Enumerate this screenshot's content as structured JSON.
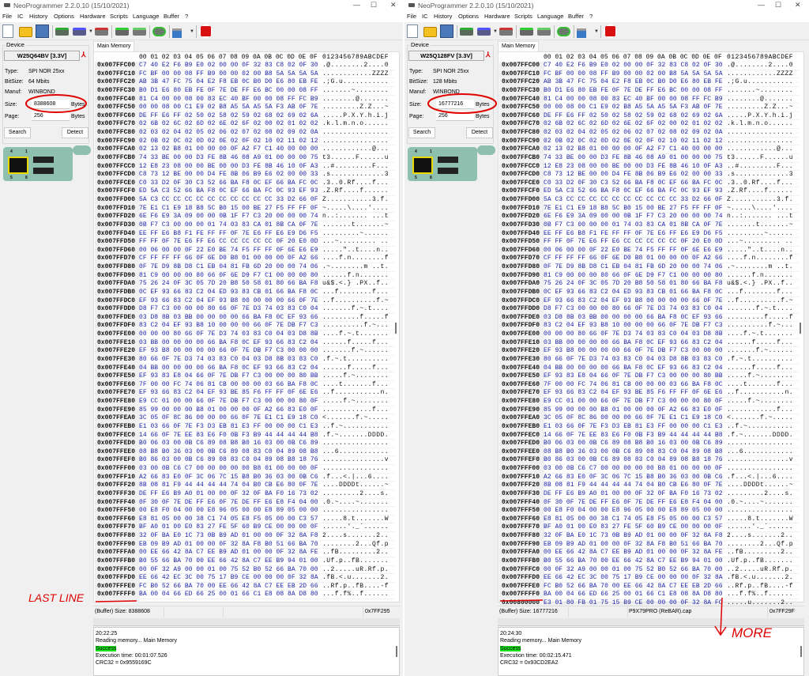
{
  "colors": {
    "hex_text": "#1b22a8",
    "success_bg": "#1be21b",
    "annotation": "#e00000"
  },
  "menu": [
    "File",
    "IC",
    "History",
    "Options",
    "Hardware",
    "Scripts",
    "Language",
    "Buffer",
    "?"
  ],
  "toolbar_icons": [
    "new-file-icon",
    "open-folder-icon",
    "save-icon",
    "read-chip-icon",
    "write-chip-icon",
    "erase-chip-icon",
    "verify-chip-icon",
    "blank-check-icon",
    "auto-program-icon",
    "lock-icon",
    "stop-icon"
  ],
  "labels": {
    "device": "Device",
    "type": "Type:",
    "bitsize": "BitSize:",
    "manuf": "Manuf:",
    "size": "Size:",
    "page": "Page:",
    "bytes": "Bytes",
    "search": "Search",
    "detect": "Detect",
    "tab": "Main Memory",
    "hex_header": "00 01 02 03 04 05 06 07 08 09 0A 0B 0C 0D 0E 0F",
    "ascii_header": "0123456789ABCDEF",
    "minimize": "—",
    "maximize": "☐",
    "close": "✕",
    "pin4": "4",
    "pin1": "1",
    "pin5": "5",
    "pin8": "8"
  },
  "windows": [
    {
      "title": "NeoProgrammer 2.2.0.10 (15/10/2021)",
      "chip": "W25Q64BV [3.3V]",
      "type": "SPI NOR 25xx",
      "bitsize": "64 Mbits",
      "manuf": "WINBOND",
      "size": "8388608",
      "page": "256",
      "status": {
        "buffer": "(Buffer) Size: 8388608",
        "file": "",
        "offset": "0x7FF295"
      },
      "log": {
        "time": "20:22:25",
        "action": "Reading memory... Main Memory",
        "result": "Success",
        "exec": "Execution time: 00:01:07.526",
        "crc": "CRC32 = 0x9559169C"
      },
      "annotation": "LAST LINE"
    },
    {
      "title": "NeoProgrammer 2.2.0.10 (15/10/2021)",
      "chip": "W25Q128FV [3.3V]",
      "type": "SPI NOR 25xx",
      "bitsize": "128 Mbits",
      "manuf": "WINBOND",
      "size": "16777216",
      "page": "256",
      "status": {
        "buffer": "(Buffer) Size: 16777216",
        "file": "P9X79PRO (ReBAR).cap",
        "offset": "0x7FF29F"
      },
      "log": {
        "time": "20:24:30",
        "action": "Reading memory... Main Memory",
        "result": "Success",
        "exec": "Execution time: 00:02:15.471",
        "crc": "CRC32 = 0x93CD2EA2"
      },
      "annotation": "MORE",
      "extra_rows": [
        {
          "addr": "0x00800000",
          "bytes": "E3 01 80 FB 01 75 15 B9 CE 00 00 00 0F 32 8A FC",
          "ascii": ".....u.......2.."
        }
      ]
    }
  ],
  "memory_rows": [
    {
      "addr": "0x007FFC00",
      "bytes": "C7 40 E2 F6 B9 E0 02 00 00 0F 32 83 C8 02 0F 30",
      "ascii": ".@........2....0"
    },
    {
      "addr": "0x007FFC10",
      "bytes": "FC BF 00 00 08 FF B9 00 00 02 00 B8 5A 5A 5A 5A",
      "ascii": "............ZZZZ"
    },
    {
      "addr": "0x007FFC20",
      "bytes": "AB 3B 47 FC 75 04 E2 F8 EB 0C B0 D0 E6 80 EB FE",
      "ascii": ".;G.u..........."
    },
    {
      "addr": "0x007FFC30",
      "bytes": "B0 D1 E6 80 EB FE 0F 7E DE FF E6 BC 00 00 08 FF",
      "ascii": ".......~........"
    },
    {
      "addr": "0x007FFC40",
      "bytes": "81 C4 00 00 08 00 83 EC 40 BF 00 00 08 FF FC B9",
      "ascii": "........@......."
    },
    {
      "addr": "0x007FFC50",
      "bytes": "00 00 08 00 C1 E9 02 B8 A5 5A A5 5A F3 AB 0F 7E",
      "ascii": ".........Z.Z...~"
    },
    {
      "addr": "0x007FFC60",
      "bytes": "DE FF E6 FF 02 50 02 58 02 59 02 68 02 69 02 6A",
      "ascii": ".....P.X.Y.h.i.j"
    },
    {
      "addr": "0x007FFC70",
      "bytes": "02 6B 02 6C 02 6D 02 6E 02 6F 02 00 02 01 02 02",
      "ascii": ".k.l.m.n.o......"
    },
    {
      "addr": "0x007FFC80",
      "bytes": "02 03 02 04 02 05 02 06 02 07 02 08 02 09 02 0A",
      "ascii": "................"
    },
    {
      "addr": "0x007FFC90",
      "bytes": "02 0B 02 0C 02 0D 02 0E 02 0F 02 10 02 11 02 12",
      "ascii": "................"
    },
    {
      "addr": "0x007FFCA0",
      "bytes": "02 13 02 B8 01 00 00 00 0F A2 F7 C1 40 00 00 00",
      "ascii": "............@..."
    },
    {
      "addr": "0x007FFCB0",
      "bytes": "74 33 BE 00 00 D3 FE 8B 46 08 A9 01 00 00 00 75",
      "ascii": "t3......F......u"
    },
    {
      "addr": "0x007FFCC0",
      "bytes": "12 E8 23 08 00 00 BE 00 00 D3 FE 8B 46 10 0F A3",
      "ascii": "..#.........F..."
    },
    {
      "addr": "0x007FFCD0",
      "bytes": "C8 73 12 BE 00 00 D4 FE 8B 06 B9 E6 02 00 00 33",
      "ascii": ".s.............3"
    },
    {
      "addr": "0x007FFCE0",
      "bytes": "C0 33 D2 0F 30 C3 52 66 BA F8 0C EF 66 BA FC 0C",
      "ascii": ".3..0.Rf....f..."
    },
    {
      "addr": "0x007FFCF0",
      "bytes": "ED 5A C3 52 66 BA F8 0C EF 66 BA FC 0C 93 EF 93",
      "ascii": ".Z.Rf....f......"
    },
    {
      "addr": "0x007FFD00",
      "bytes": "5A C3 CC CC CC CC CC CC CC CC CC CC 33 D2 66 0F",
      "ascii": "Z...........3.f."
    },
    {
      "addr": "0x007FFD10",
      "bytes": "7E E1 C1 E9 18 B8 5C B0 15 00 BE 27 F5 FF FF 0F",
      "ascii": "~.....\\....'...."
    },
    {
      "addr": "0x007FFD20",
      "bytes": "6E F6 E9 3A 09 00 00 0B 1F F7 C3 20 00 00 00 74",
      "ascii": "n..:....... ...t"
    },
    {
      "addr": "0x007FFD30",
      "bytes": "0B F7 C3 00 00 00 01 74 03 83 CA 01 8B CA 0F 7E",
      "ascii": ".......t.......~"
    },
    {
      "addr": "0x007FFD40",
      "bytes": "EE FF E6 B8 F1 FE FF FF 0F 7E E6 FF E6 E9 D6 F5",
      "ascii": ".........~......"
    },
    {
      "addr": "0x007FFD50",
      "bytes": "FF FF 0F 7E E6 FF E6 CC CC CC CC CC 0F 20 E0 0D",
      "ascii": "...~......... .."
    },
    {
      "addr": "0x007FFD60",
      "bytes": "00 06 00 00 0F 22 E0 BE 74 F5 FF FF 0F 6E E6 E9",
      "ascii": ".....\"..t....n.."
    },
    {
      "addr": "0x007FFD70",
      "bytes": "CF FF FF FF 66 0F 6E D0 B8 01 00 00 00 0F A2 66",
      "ascii": "....f.n........f"
    },
    {
      "addr": "0x007FFD80",
      "bytes": "0F 7E D9 8B D8 C1 EB 04 81 FB 6D 20 00 00 74 06",
      "ascii": ".~........m ..t."
    },
    {
      "addr": "0x007FFD90",
      "bytes": "81 C9 00 00 00 80 66 0F 6E D9 F7 C1 00 00 00 80",
      "ascii": "......f.n......."
    },
    {
      "addr": "0x007FFDA0",
      "bytes": "75 26 24 0F 3C 05 7D 20 B8 50 58 01 80 66 BA F8",
      "ascii": "u&$.<.} .PX..f.."
    },
    {
      "addr": "0x007FFDB0",
      "bytes": "0C EF 93 66 83 C2 04 ED 93 83 CB 01 66 BA F8 0C",
      "ascii": "...f........f..."
    },
    {
      "addr": "0x007FFDC0",
      "bytes": "EF 93 66 83 C2 04 EF 93 B8 00 00 00 00 66 0F 7E",
      "ascii": "..f..........f.~"
    },
    {
      "addr": "0x007FFDD0",
      "bytes": "D8 F7 C3 00 00 00 80 66 0F 7E D3 74 03 83 C0 04",
      "ascii": ".......f.~.t...."
    },
    {
      "addr": "0x007FFDE0",
      "bytes": "03 D8 8B 03 BB 00 00 00 00 66 BA F8 0C EF 93 66",
      "ascii": ".........f.....f"
    },
    {
      "addr": "0x007FFDF0",
      "bytes": "83 C2 04 EF 93 B8 10 00 00 00 66 0F 7E DB F7 C3",
      "ascii": "..........f.~..."
    },
    {
      "addr": "0x007FFE00",
      "bytes": "00 00 00 80 66 0F 7E D3 74 03 83 C0 04 03 D8 8B",
      "ascii": "....f.~.t......."
    },
    {
      "addr": "0x007FFE10",
      "bytes": "03 BB 00 00 00 00 66 BA F8 0C EF 93 66 83 C2 04",
      "ascii": "......f.....f..."
    },
    {
      "addr": "0x007FFE20",
      "bytes": "EF 93 B8 00 00 00 00 66 0F 7E DB F7 C3 00 00 00",
      "ascii": ".......f.~......"
    },
    {
      "addr": "0x007FFE30",
      "bytes": "80 66 0F 7E D3 74 03 83 C0 04 03 D8 8B 03 83 C0",
      "ascii": ".f.~.t.........."
    },
    {
      "addr": "0x007FFE40",
      "bytes": "04 BB 00 00 00 00 66 BA F8 0C EF 93 66 83 C2 04",
      "ascii": "......f.....f..."
    },
    {
      "addr": "0x007FFE50",
      "bytes": "EF 93 83 E8 04 66 0F 7E DB F7 C3 00 00 00 80 BB",
      "ascii": ".....f.~........"
    },
    {
      "addr": "0x007FFE60",
      "bytes": "7F 00 00 FC 74 06 81 CB 00 00 00 03 66 BA F8 0C",
      "ascii": "....t.......f..."
    },
    {
      "addr": "0x007FFE70",
      "bytes": "EF 93 66 83 C2 04 EF 93 BE 85 F6 FF FF 0F 6E E6",
      "ascii": "..f...........n."
    },
    {
      "addr": "0x007FFE80",
      "bytes": "E9 CC 01 00 00 66 0F 7E DB F7 C3 00 00 00 80 0F",
      "ascii": ".....f.~........"
    },
    {
      "addr": "0x007FFE90",
      "bytes": "85 99 00 00 00 B8 01 00 00 00 0F A2 66 83 E0 0F",
      "ascii": "............f..."
    },
    {
      "addr": "0x007FFEA0",
      "bytes": "3C 05 0F 8C 86 00 00 00 66 0F 7E E1 C1 E9 18 C0",
      "ascii": "<.......f.~....."
    },
    {
      "addr": "0x007FFEB0",
      "bytes": "E1 03 66 0F 7E F3 D3 EB 81 E3 FF 00 00 00 C1 E3",
      "ascii": "..f.~..........."
    },
    {
      "addr": "0x007FFEC0",
      "bytes": "14 66 0F 7E EE 83 E6 F0 0B F3 B9 44 44 44 44 B8",
      "ascii": ".f.~.......DDDD."
    },
    {
      "addr": "0x007FFED0",
      "bytes": "B0 06 03 00 0B C6 89 08 B8 B0 16 03 00 0B C6 89",
      "ascii": "................"
    },
    {
      "addr": "0x007FFEE0",
      "bytes": "08 B8 B0 36 03 00 0B C6 89 08 83 C0 04 89 08 B8",
      "ascii": "...6............"
    },
    {
      "addr": "0x007FFEF0",
      "bytes": "B0 86 03 00 0B C6 89 08 83 C0 04 89 08 B8 18 76",
      "ascii": "...............v"
    },
    {
      "addr": "0x007FFF00",
      "bytes": "03 00 0B C6 C7 00 00 00 00 00 B8 01 00 00 00 0F",
      "ascii": "................"
    },
    {
      "addr": "0x007FFF10",
      "bytes": "A2 66 83 E0 0F 3C 06 7C 15 B8 B0 36 03 00 0B C6",
      "ascii": ".f...<.|...6...."
    },
    {
      "addr": "0x007FFF20",
      "bytes": "8B 08 81 F9 44 44 44 44 74 04 B0 CB E6 80 0F 7E",
      "ascii": "....DDDDt......~"
    },
    {
      "addr": "0x007FFF30",
      "bytes": "DE FF E6 B9 A0 01 00 00 0F 32 0F BA F0 16 73 02",
      "ascii": ".........2....s."
    },
    {
      "addr": "0x007FFF40",
      "bytes": "0F 30 0F 7E DE FF E6 0F 7E DE FF E6 E8 F4 04 00",
      "ascii": ".0.~....~......."
    },
    {
      "addr": "0x007FFF50",
      "bytes": "00 E8 F0 04 00 00 E8 96 05 00 00 E8 89 05 00 00",
      "ascii": "................"
    },
    {
      "addr": "0x007FFF60",
      "bytes": "E8 81 05 00 00 38 C1 74 05 E8 F5 05 00 00 C3 57",
      "ascii": ".....8.t.......W"
    },
    {
      "addr": "0x007FFF70",
      "bytes": "BF A0 01 00 E0 83 27 FE 5F 60 B9 CE 00 00 00 0F",
      "ascii": "......'._`......"
    },
    {
      "addr": "0x007FFF80",
      "bytes": "32 0F BA E0 1C 73 0B B9 AD 01 00 00 0F 32 8A F8",
      "ascii": "2....s.......2.."
    },
    {
      "addr": "0x007FFF90",
      "bytes": "EB 09 B9 AD 01 00 00 0F 32 8A F8 B0 51 66 BA 70",
      "ascii": "........2...Qf.p"
    },
    {
      "addr": "0x007FFFA0",
      "bytes": "00 EE 66 42 8A C7 EE B9 AD 01 00 00 0F 32 8A FE",
      "ascii": "..fB.........2.."
    },
    {
      "addr": "0x007FFFB0",
      "bytes": "B0 55 66 BA 70 00 EE 66 42 8A C7 EE B9 94 01 00",
      "ascii": ".Uf.p..fB......."
    },
    {
      "addr": "0x007FFFC0",
      "bytes": "00 0F 32 A9 00 00 01 00 75 52 B0 52 66 BA 70 00",
      "ascii": "..2.....uR.Rf.p."
    },
    {
      "addr": "0x007FFFD0",
      "bytes": "EE 66 42 EC 3C 00 75 17 B9 CE 00 00 00 0F 32 8A",
      "ascii": ".fB.<.u.......2."
    },
    {
      "addr": "0x007FFFE0",
      "bytes": "FC B0 52 66 BA 70 00 EE 66 42 8A C7 EE EB 2D 66",
      "ascii": "..Rf.p..fB....-f"
    },
    {
      "addr": "0x007FFFF0",
      "bytes": "BA 00 04 66 ED 66 25 00 01 66 C1 E8 08 8A D8 80",
      "ascii": "...f.f%..f......"
    }
  ]
}
